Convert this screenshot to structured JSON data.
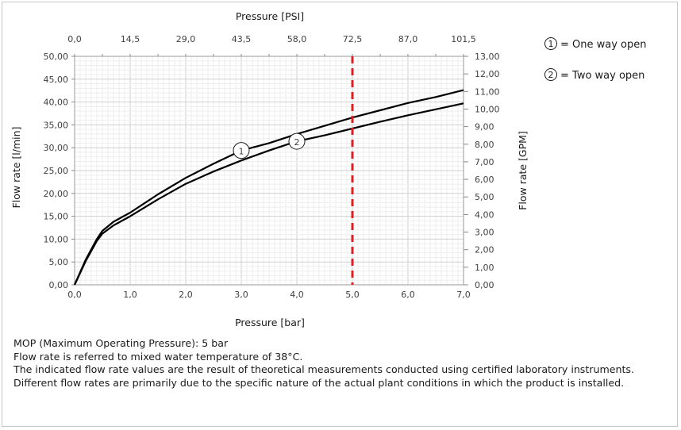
{
  "chart_data": {
    "type": "line",
    "xlabel": "Pressure [bar]",
    "x2label": "Pressure [PSI]",
    "ylabel": "Flow rate [l/min]",
    "y2label": "Flow rate [GPM]",
    "xlim": [
      0,
      7
    ],
    "ylim": [
      0,
      50
    ],
    "y2lim": [
      0,
      13
    ],
    "x_ticks": [
      "0,0",
      "1,0",
      "2,0",
      "3,0",
      "4,0",
      "5,0",
      "6,0",
      "7,0"
    ],
    "x2_ticks": [
      "0,0",
      "14,5",
      "29,0",
      "43,5",
      "58,0",
      "72,5",
      "87,0",
      "101,5"
    ],
    "y_ticks": [
      "0,00",
      "5,00",
      "10,00",
      "15,00",
      "20,00",
      "25,00",
      "30,00",
      "35,00",
      "40,00",
      "45,00",
      "50,00"
    ],
    "y2_ticks": [
      "0,00",
      "1,00",
      "2,00",
      "3,00",
      "4,00",
      "5,00",
      "6,00",
      "7,00",
      "8,00",
      "9,00",
      "10,00",
      "11,00",
      "12,00",
      "13,00"
    ],
    "grid": true,
    "series": [
      {
        "name": "One way open",
        "marker": "1",
        "color": "#000000",
        "x": [
          0,
          0.2,
          0.4,
          0.5,
          0.7,
          1.0,
          1.5,
          2.0,
          2.5,
          3.0,
          3.5,
          4.0,
          4.5,
          5.0,
          5.5,
          6.0,
          6.5,
          7.0
        ],
        "y": [
          0,
          5.5,
          10.0,
          11.8,
          13.8,
          15.8,
          19.8,
          23.4,
          26.5,
          29.4,
          31.0,
          33.0,
          34.8,
          36.6,
          38.2,
          39.8,
          41.1,
          42.6
        ]
      },
      {
        "name": "Two way open",
        "marker": "2",
        "color": "#000000",
        "x": [
          0,
          0.2,
          0.4,
          0.5,
          0.7,
          1.0,
          1.5,
          2.0,
          2.5,
          3.0,
          3.5,
          4.0,
          4.5,
          5.0,
          5.5,
          6.0,
          6.5,
          7.0
        ],
        "y": [
          0,
          5.2,
          9.6,
          11.2,
          13.0,
          15.0,
          18.7,
          22.1,
          24.8,
          27.2,
          29.4,
          31.4,
          32.7,
          34.2,
          35.7,
          37.1,
          38.4,
          39.7
        ]
      }
    ],
    "reference_line": {
      "x": 5.0,
      "color": "#e02020",
      "style": "dashed"
    },
    "legend_position": "top-right"
  },
  "legend": [
    {
      "number": "1",
      "label": "= One way open"
    },
    {
      "number": "2",
      "label": "= Two way open"
    }
  ],
  "notes": [
    "MOP (Maximum Operating Pressure): 5 bar",
    "Flow rate is referred to mixed water temperature of 38°C.",
    "The indicated flow rate values are the result of theoretical measurements conducted using certified laboratory instruments.",
    "Different flow rates are primarily due to the specific nature of the actual plant conditions in which the product is installed."
  ]
}
